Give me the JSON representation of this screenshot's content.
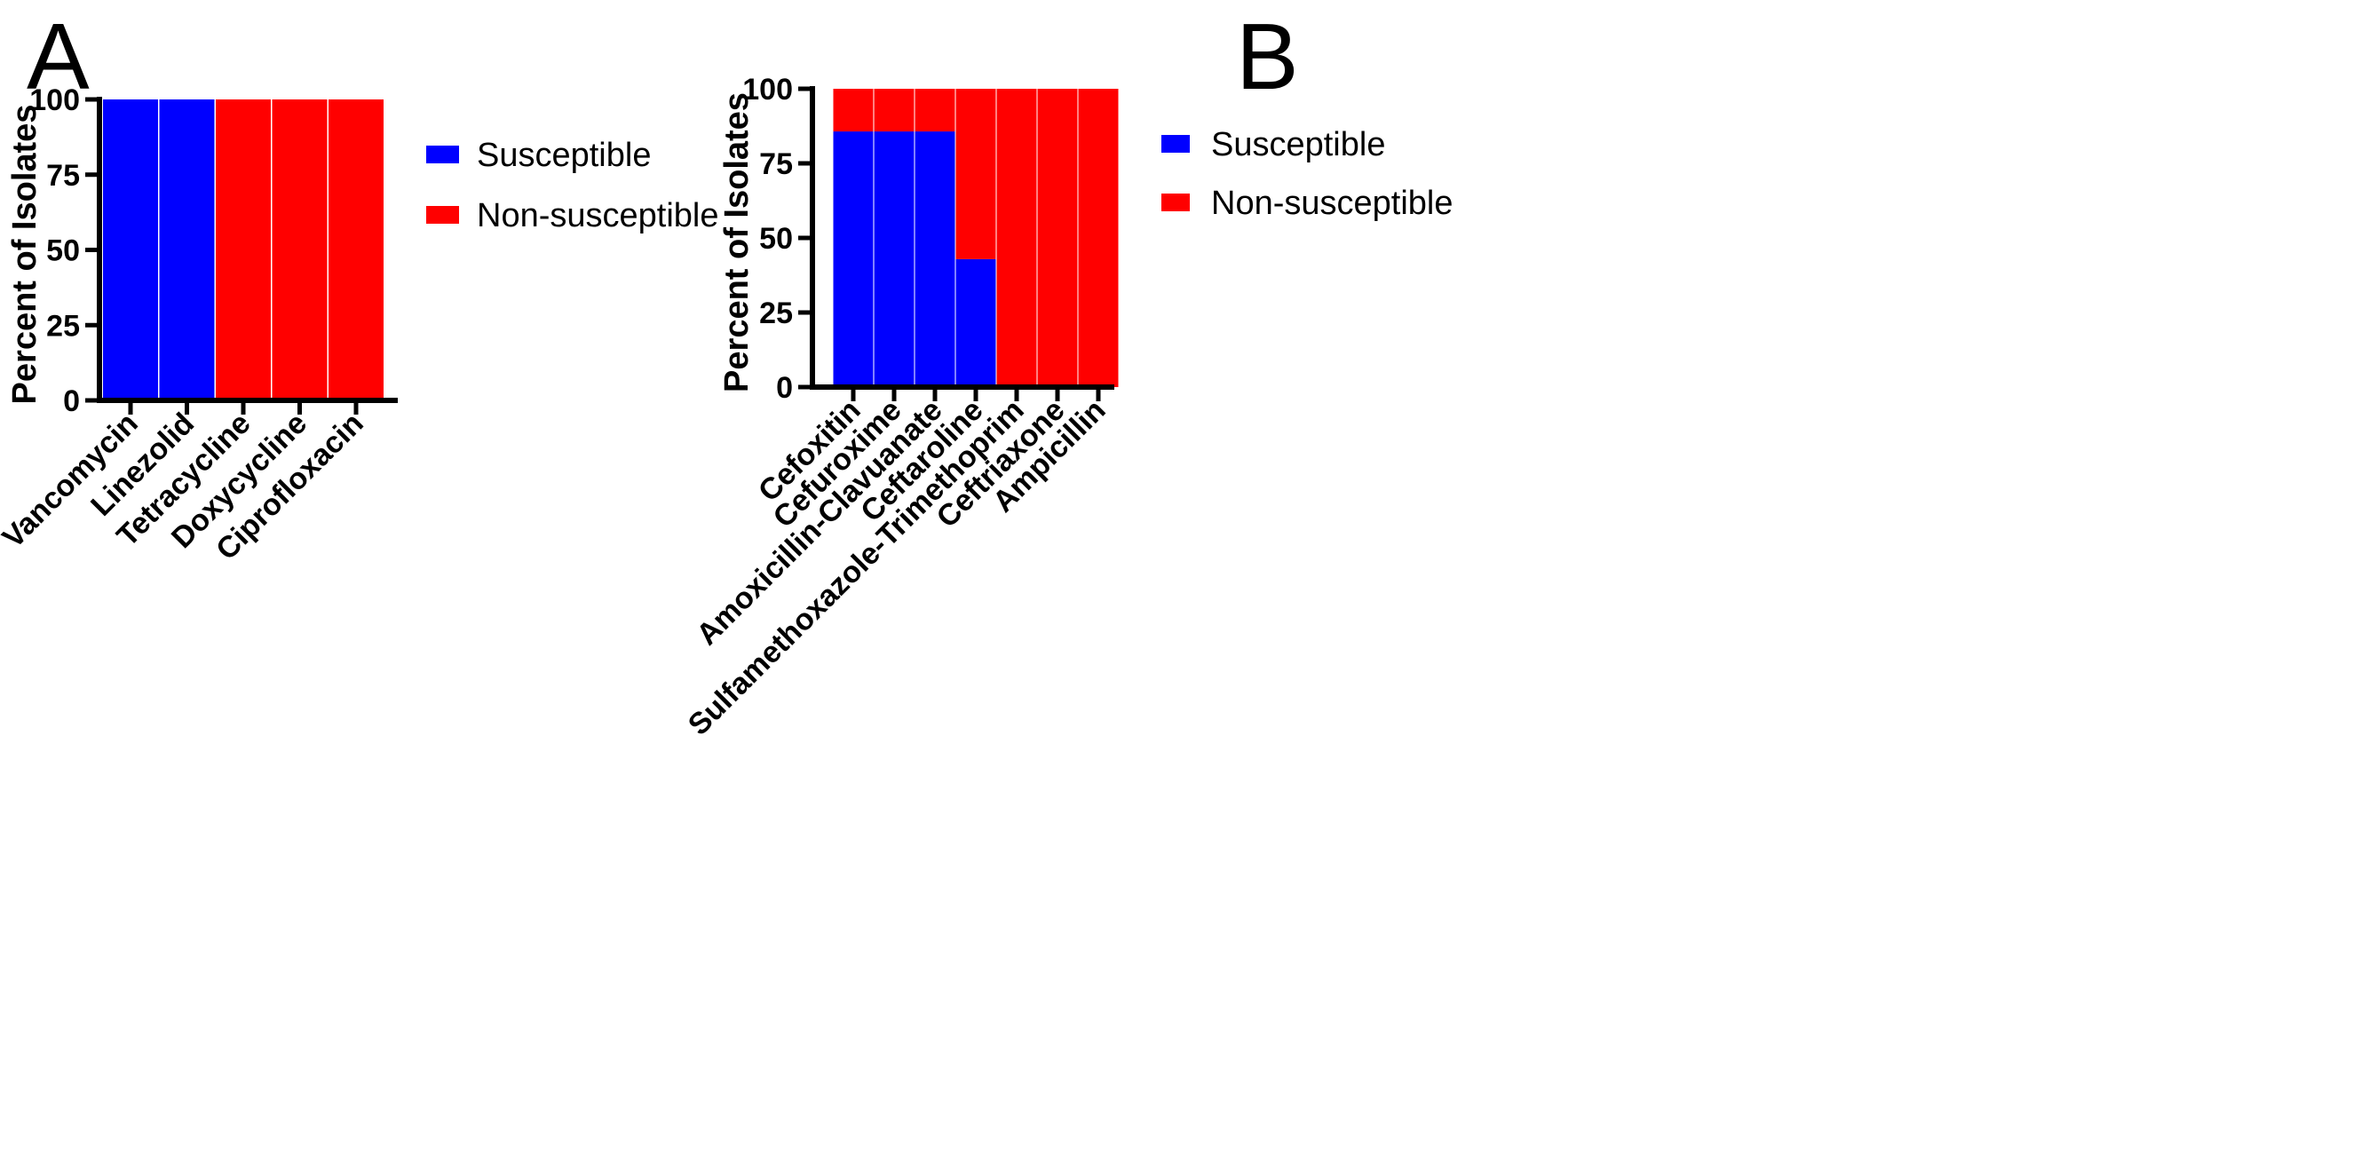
{
  "colors": {
    "susceptible": "#0000ff",
    "non_susceptible": "#ff0000"
  },
  "chart_data": [
    {
      "panel": "A",
      "type": "bar",
      "stacked": true,
      "ylabel": "Percent of Isolates",
      "xlabel": "",
      "ylim": [
        0,
        100
      ],
      "yticks": [
        0,
        25,
        50,
        75,
        100
      ],
      "categories": [
        "Vancomycin",
        "Linezolid",
        "Tetracycline",
        "Doxycycline",
        "Ciprofloxacin"
      ],
      "series": [
        {
          "name": "Susceptible",
          "values": [
            100,
            100,
            0,
            0,
            0
          ]
        },
        {
          "name": "Non-susceptible",
          "values": [
            0,
            0,
            100,
            100,
            100
          ]
        }
      ],
      "legend": [
        "Susceptible",
        "Non-susceptible"
      ],
      "legend_position": "right"
    },
    {
      "panel": "B",
      "type": "bar",
      "stacked": true,
      "ylabel": "Percent of Isolates",
      "xlabel": "",
      "ylim": [
        0,
        100
      ],
      "yticks": [
        0,
        25,
        50,
        75,
        100
      ],
      "categories": [
        "Cefoxitin",
        "Cefuroxime",
        "Amoxicillin-Clavuanate",
        "Ceftaroline",
        "Sulfamethoxazole-Trimethoprim",
        "Ceftriaxone",
        "Ampicillin"
      ],
      "series": [
        {
          "name": "Susceptible",
          "values": [
            85.7,
            85.7,
            85.7,
            42.9,
            0,
            0,
            0
          ]
        },
        {
          "name": "Non-susceptible",
          "values": [
            14.3,
            14.3,
            14.3,
            57.1,
            100,
            100,
            100
          ]
        }
      ],
      "legend": [
        "Susceptible",
        "Non-susceptible"
      ],
      "legend_position": "right"
    }
  ]
}
